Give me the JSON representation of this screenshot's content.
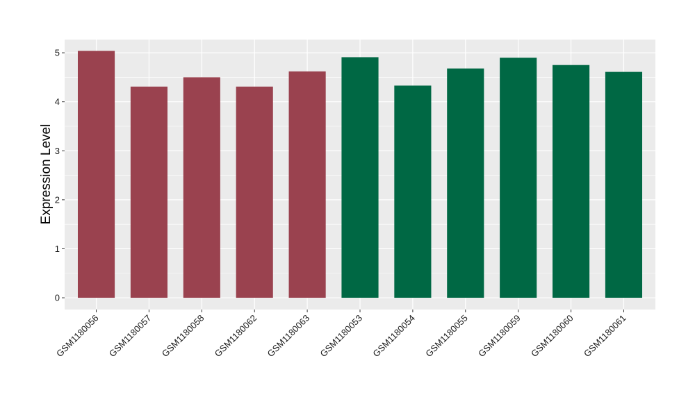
{
  "chart_data": {
    "type": "bar",
    "categories": [
      "GSM1180056",
      "GSM1180057",
      "GSM1180058",
      "GSM1180062",
      "GSM1180063",
      "GSM1180053",
      "GSM1180054",
      "GSM1180055",
      "GSM1180059",
      "GSM1180060",
      "GSM1180061"
    ],
    "values": [
      5.04,
      4.31,
      4.5,
      4.31,
      4.62,
      4.91,
      4.33,
      4.68,
      4.9,
      4.75,
      4.61
    ],
    "bar_colors": [
      "#9a424f",
      "#9a424f",
      "#9a424f",
      "#9a424f",
      "#9a424f",
      "#006844",
      "#006844",
      "#006844",
      "#006844",
      "#006844",
      "#006844"
    ],
    "title": "",
    "xlabel": "",
    "ylabel": "Expression Level",
    "yticks": [
      0,
      1,
      2,
      3,
      4,
      5
    ],
    "ylim": [
      -0.24,
      5.27
    ],
    "grid": true,
    "legend": "none",
    "panel_background": "#ebebeb",
    "grid_color": "#ffffff"
  }
}
